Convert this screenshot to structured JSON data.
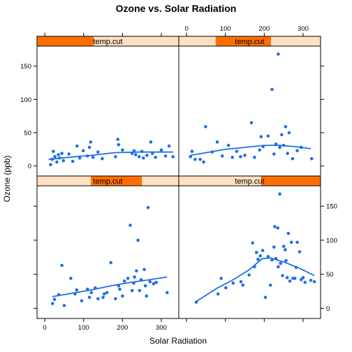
{
  "chart_data": {
    "type": "scatter",
    "title": "Ozone vs. Solar Radiation",
    "xlabel": "Solar Radiation",
    "ylabel": "Ozone (ppb)",
    "xlim": [
      -20,
      345
    ],
    "ylim": [
      -15,
      180
    ],
    "x_ticks": [
      0,
      100,
      200,
      300
    ],
    "y_ticks": [
      0,
      50,
      100,
      150
    ],
    "panel_colors": {
      "strip_bg": "#ffe0c0",
      "strip_fill": "#ff6f00",
      "point": "#1f6fe8"
    },
    "panels": [
      {
        "strip": "temp.cut",
        "strip_range": [
          0,
          0.4
        ],
        "x": [
          15,
          19,
          22,
          26,
          31,
          35,
          38,
          44,
          48,
          62,
          72,
          83,
          90,
          99,
          110,
          115,
          118,
          124,
          137,
          148,
          182,
          188,
          190,
          200,
          225,
          230,
          234,
          243,
          250,
          254,
          263,
          273,
          277,
          285,
          300,
          311,
          320,
          330
        ],
        "y": [
          2,
          10,
          22,
          14,
          6,
          17,
          12,
          19,
          8,
          18,
          7,
          30,
          12,
          23,
          15,
          28,
          36,
          13,
          21,
          11,
          14,
          40,
          32,
          24,
          19,
          23,
          17,
          14,
          22,
          12,
          16,
          36,
          19,
          13,
          24,
          15,
          30,
          14
        ],
        "smooth_x": [
          10,
          60,
          120,
          180,
          240,
          300,
          330
        ],
        "smooth_y": [
          10,
          13,
          16,
          20,
          21,
          21,
          21
        ]
      },
      {
        "strip": "temp.cut",
        "strip_range": [
          0.26,
          0.65
        ],
        "x": [
          10,
          14,
          22,
          35,
          44,
          49,
          66,
          79,
          92,
          108,
          118,
          129,
          139,
          150,
          167,
          175,
          188,
          192,
          197,
          210,
          220,
          225,
          230,
          236,
          240,
          245,
          250,
          255,
          260,
          264,
          273,
          285,
          295,
          322
        ],
        "y": [
          14,
          22,
          10,
          10,
          6,
          59,
          21,
          36,
          15,
          31,
          13,
          22,
          14,
          16,
          65,
          13,
          24,
          44,
          29,
          45,
          115,
          18,
          33,
          168,
          28,
          47,
          31,
          59,
          19,
          50,
          11,
          23,
          28,
          11
        ],
        "smooth_x": [
          10,
          50,
          100,
          150,
          200,
          240,
          280,
          320
        ],
        "smooth_y": [
          16,
          20,
          25,
          28,
          31,
          31,
          29,
          26
        ]
      },
      {
        "strip": "temp.cut",
        "strip_range": [
          0.38,
          0.74
        ],
        "x": [
          20,
          25,
          36,
          44,
          50,
          67,
          78,
          82,
          95,
          110,
          115,
          120,
          130,
          137,
          150,
          153,
          160,
          170,
          182,
          190,
          193,
          200,
          205,
          214,
          220,
          225,
          229,
          231,
          236,
          240,
          244,
          248,
          256,
          259,
          262,
          266,
          271,
          280,
          287,
          315
        ],
        "y": [
          7,
          13,
          20,
          63,
          4,
          44,
          21,
          27,
          11,
          28,
          16,
          23,
          30,
          14,
          16,
          21,
          23,
          67,
          14,
          33,
          28,
          18,
          40,
          44,
          122,
          26,
          37,
          46,
          55,
          100,
          26,
          42,
          57,
          33,
          18,
          148,
          39,
          36,
          38,
          23
        ],
        "smooth_x": [
          20,
          70,
          120,
          170,
          220,
          270,
          315
        ],
        "smooth_y": [
          17,
          22,
          27,
          33,
          38,
          42,
          46
        ]
      },
      {
        "strip": "temp.cut",
        "strip_range": [
          0.58,
          1.0
        ],
        "x": [
          25,
          81,
          89,
          101,
          120,
          140,
          145,
          161,
          170,
          175,
          180,
          184,
          190,
          196,
          203,
          210,
          216,
          220,
          225,
          227,
          230,
          235,
          236,
          240,
          242,
          247,
          250,
          254,
          256,
          259,
          262,
          266,
          270,
          274,
          279,
          282,
          285,
          291,
          295,
          300,
          305,
          320,
          329
        ],
        "y": [
          9,
          21,
          44,
          30,
          37,
          39,
          34,
          49,
          96,
          61,
          82,
          72,
          77,
          85,
          16,
          76,
          34,
          71,
          90,
          120,
          73,
          118,
          61,
          168,
          66,
          48,
          91,
          86,
          70,
          45,
          110,
          40,
          97,
          44,
          44,
          60,
          97,
          83,
          42,
          45,
          38,
          41,
          39
        ],
        "smooth_x": [
          25,
          80,
          120,
          160,
          195,
          215,
          250,
          290,
          329
        ],
        "smooth_y": [
          10,
          30,
          42,
          56,
          73,
          74,
          68,
          59,
          48
        ]
      }
    ]
  },
  "panel_top_labels": [
    {
      "strip": "temp.cut"
    },
    {
      "strip": "temp.cut"
    }
  ],
  "panel_bottom_labels": [
    {
      "strip": "temp.cut"
    },
    {
      "strip": "temp.cut"
    }
  ]
}
